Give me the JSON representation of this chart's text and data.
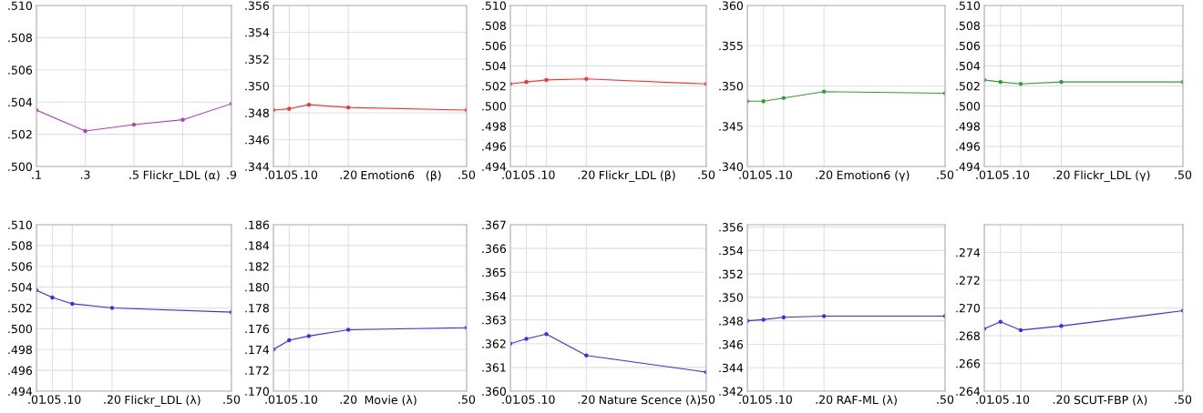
{
  "chart_data": [
    {
      "type": "line",
      "xlabel": "Flickr_LDL (α)",
      "x": [
        0.1,
        0.3,
        0.5,
        0.7,
        0.9
      ],
      "series": [
        {
          "color": "#b040c0",
          "values": [
            0.5035,
            0.5022,
            0.5026,
            0.5029,
            0.5039
          ]
        }
      ],
      "xlim": [
        0.1,
        0.9
      ],
      "xticks": [
        {
          "value": 0.1,
          "label": ".1"
        },
        {
          "value": 0.3,
          "label": ".3"
        },
        {
          "value": 0.5,
          "label": ".5"
        },
        {
          "value": 0.7,
          "label": null
        },
        {
          "value": 0.9,
          "label": ".9"
        }
      ],
      "ylim": [
        0.5,
        0.51
      ],
      "yticks": [
        {
          "value": 0.5,
          "label": ".500"
        },
        {
          "value": 0.502,
          "label": ".502"
        },
        {
          "value": 0.504,
          "label": ".504"
        },
        {
          "value": 0.506,
          "label": ".506"
        },
        {
          "value": 0.508,
          "label": ".508"
        },
        {
          "value": 0.51,
          "label": ".510"
        }
      ],
      "grid": true,
      "marker": "circle"
    },
    {
      "type": "line",
      "xlabel": "Emotion6   (β)",
      "x": [
        0.01,
        0.05,
        0.1,
        0.2,
        0.5
      ],
      "series": [
        {
          "color": "#ff3030",
          "values": [
            0.3482,
            0.3483,
            0.3486,
            0.3484,
            0.3482
          ]
        }
      ],
      "xlim": [
        0.01,
        0.5
      ],
      "xticks": [
        {
          "value": 0.01,
          "label": ".01"
        },
        {
          "value": 0.05,
          "label": ".05"
        },
        {
          "value": 0.1,
          "label": ".10"
        },
        {
          "value": 0.2,
          "label": ".20"
        },
        {
          "value": 0.5,
          "label": ".50"
        }
      ],
      "ylim": [
        0.344,
        0.356
      ],
      "yticks": [
        {
          "value": 0.344,
          "label": ".344"
        },
        {
          "value": 0.346,
          "label": ".346"
        },
        {
          "value": 0.348,
          "label": ".348"
        },
        {
          "value": 0.35,
          "label": ".350"
        },
        {
          "value": 0.352,
          "label": ".352"
        },
        {
          "value": 0.354,
          "label": ".354"
        },
        {
          "value": 0.356,
          "label": ".356"
        }
      ],
      "grid": true,
      "marker": "circle"
    },
    {
      "type": "line",
      "xlabel": "Flickr_LDL (β)",
      "x": [
        0.01,
        0.05,
        0.1,
        0.2,
        0.5
      ],
      "series": [
        {
          "color": "#ff3030",
          "values": [
            0.5022,
            0.5024,
            0.5026,
            0.5027,
            0.5022
          ]
        }
      ],
      "xlim": [
        0.01,
        0.5
      ],
      "xticks": [
        {
          "value": 0.01,
          "label": ".01"
        },
        {
          "value": 0.05,
          "label": ".05"
        },
        {
          "value": 0.1,
          "label": ".10"
        },
        {
          "value": 0.2,
          "label": ".20"
        },
        {
          "value": 0.5,
          "label": ".50"
        }
      ],
      "ylim": [
        0.494,
        0.51
      ],
      "yticks": [
        {
          "value": 0.494,
          "label": ".494"
        },
        {
          "value": 0.496,
          "label": ".496"
        },
        {
          "value": 0.498,
          "label": ".498"
        },
        {
          "value": 0.5,
          "label": ".500"
        },
        {
          "value": 0.502,
          "label": ".502"
        },
        {
          "value": 0.504,
          "label": ".504"
        },
        {
          "value": 0.506,
          "label": ".506"
        },
        {
          "value": 0.508,
          "label": ".508"
        },
        {
          "value": 0.51,
          "label": ".510"
        }
      ],
      "grid": true,
      "marker": "circle"
    },
    {
      "type": "line",
      "xlabel": "Emotion6 (γ)",
      "x": [
        0.01,
        0.05,
        0.1,
        0.2,
        0.5
      ],
      "series": [
        {
          "color": "#30a030",
          "values": [
            0.3481,
            0.3481,
            0.3485,
            0.3493,
            0.3491
          ]
        }
      ],
      "xlim": [
        0.01,
        0.5
      ],
      "xticks": [
        {
          "value": 0.01,
          "label": ".01"
        },
        {
          "value": 0.05,
          "label": ".05"
        },
        {
          "value": 0.1,
          "label": ".10"
        },
        {
          "value": 0.2,
          "label": ".20"
        },
        {
          "value": 0.5,
          "label": ".50"
        }
      ],
      "ylim": [
        0.34,
        0.36
      ],
      "yticks": [
        {
          "value": 0.34,
          "label": ".340"
        },
        {
          "value": 0.345,
          "label": ".345"
        },
        {
          "value": 0.35,
          "label": ".350"
        },
        {
          "value": 0.355,
          "label": ".355"
        },
        {
          "value": 0.36,
          "label": ".360"
        }
      ],
      "grid": true,
      "marker": "circle"
    },
    {
      "type": "line",
      "xlabel": "Flickr_LDL (γ)",
      "x": [
        0.01,
        0.05,
        0.1,
        0.2,
        0.5
      ],
      "series": [
        {
          "color": "#30a030",
          "values": [
            0.5026,
            0.5024,
            0.5022,
            0.5024,
            0.5024
          ]
        }
      ],
      "xlim": [
        0.01,
        0.5
      ],
      "xticks": [
        {
          "value": 0.01,
          "label": ".01"
        },
        {
          "value": 0.05,
          "label": ".05"
        },
        {
          "value": 0.1,
          "label": ".10"
        },
        {
          "value": 0.2,
          "label": ".20"
        },
        {
          "value": 0.5,
          "label": ".50"
        }
      ],
      "ylim": [
        0.494,
        0.51
      ],
      "yticks": [
        {
          "value": 0.494,
          "label": ".494"
        },
        {
          "value": 0.496,
          "label": ".496"
        },
        {
          "value": 0.498,
          "label": ".498"
        },
        {
          "value": 0.5,
          "label": ".500"
        },
        {
          "value": 0.502,
          "label": ".502"
        },
        {
          "value": 0.504,
          "label": ".504"
        },
        {
          "value": 0.506,
          "label": ".506"
        },
        {
          "value": 0.508,
          "label": ".508"
        },
        {
          "value": 0.51,
          "label": ".510"
        }
      ],
      "grid": true,
      "marker": "circle"
    },
    {
      "type": "line",
      "xlabel": "Flickr_LDL (λ)",
      "x": [
        0.01,
        0.05,
        0.1,
        0.2,
        0.5
      ],
      "series": [
        {
          "color": "#3030ff",
          "values": [
            0.5037,
            0.503,
            0.5024,
            0.502,
            0.5016
          ]
        }
      ],
      "xlim": [
        0.01,
        0.5
      ],
      "xticks": [
        {
          "value": 0.01,
          "label": ".01"
        },
        {
          "value": 0.05,
          "label": ".05"
        },
        {
          "value": 0.1,
          "label": ".10"
        },
        {
          "value": 0.2,
          "label": ".20"
        },
        {
          "value": 0.5,
          "label": ".50"
        }
      ],
      "ylim": [
        0.494,
        0.51
      ],
      "yticks": [
        {
          "value": 0.494,
          "label": ".494"
        },
        {
          "value": 0.496,
          "label": ".496"
        },
        {
          "value": 0.498,
          "label": ".498"
        },
        {
          "value": 0.5,
          "label": ".500"
        },
        {
          "value": 0.502,
          "label": ".502"
        },
        {
          "value": 0.504,
          "label": ".504"
        },
        {
          "value": 0.506,
          "label": ".506"
        },
        {
          "value": 0.508,
          "label": ".508"
        },
        {
          "value": 0.51,
          "label": ".510"
        }
      ],
      "grid": true,
      "marker": "circle"
    },
    {
      "type": "line",
      "xlabel": "Movie (λ)",
      "x": [
        0.01,
        0.05,
        0.1,
        0.2,
        0.5
      ],
      "series": [
        {
          "color": "#3030ff",
          "values": [
            0.174,
            0.1749,
            0.1753,
            0.1759,
            0.1761
          ]
        }
      ],
      "xlim": [
        0.01,
        0.5
      ],
      "xticks": [
        {
          "value": 0.01,
          "label": ".01"
        },
        {
          "value": 0.05,
          "label": ".05"
        },
        {
          "value": 0.1,
          "label": ".10"
        },
        {
          "value": 0.2,
          "label": ".20"
        },
        {
          "value": 0.5,
          "label": ".50"
        }
      ],
      "ylim": [
        0.17,
        0.186
      ],
      "yticks": [
        {
          "value": 0.17,
          "label": ".170"
        },
        {
          "value": 0.172,
          "label": ".172"
        },
        {
          "value": 0.174,
          "label": ".174"
        },
        {
          "value": 0.176,
          "label": ".176"
        },
        {
          "value": 0.178,
          "label": ".178"
        },
        {
          "value": 0.18,
          "label": ".180"
        },
        {
          "value": 0.182,
          "label": ".182"
        },
        {
          "value": 0.184,
          "label": ".184"
        },
        {
          "value": 0.186,
          "label": ".186"
        }
      ],
      "grid": true,
      "marker": "circle"
    },
    {
      "type": "line",
      "xlabel": "Nature Scence (λ)",
      "x": [
        0.01,
        0.05,
        0.1,
        0.2,
        0.5
      ],
      "series": [
        {
          "color": "#3030ff",
          "values": [
            0.362,
            0.3622,
            0.3624,
            0.3615,
            0.3608
          ]
        }
      ],
      "xlim": [
        0.01,
        0.5
      ],
      "xticks": [
        {
          "value": 0.01,
          "label": ".01"
        },
        {
          "value": 0.05,
          "label": ".05"
        },
        {
          "value": 0.1,
          "label": ".10"
        },
        {
          "value": 0.2,
          "label": ".20"
        },
        {
          "value": 0.5,
          "label": ".50"
        }
      ],
      "ylim": [
        0.36,
        0.367
      ],
      "yticks": [
        {
          "value": 0.36,
          "label": ".360"
        },
        {
          "value": 0.361,
          "label": ".361"
        },
        {
          "value": 0.362,
          "label": ".362"
        },
        {
          "value": 0.363,
          "label": ".363"
        },
        {
          "value": 0.364,
          "label": ".364"
        },
        {
          "value": 0.365,
          "label": ".365"
        },
        {
          "value": 0.366,
          "label": ".366"
        },
        {
          "value": 0.367,
          "label": ".367"
        }
      ],
      "grid": true,
      "marker": "circle"
    },
    {
      "type": "line",
      "xlabel": "RAF-ML (λ)",
      "x": [
        0.01,
        0.05,
        0.1,
        0.2,
        0.5
      ],
      "series": [
        {
          "color": "#3030ff",
          "values": [
            0.348,
            0.3481,
            0.3483,
            0.3484,
            0.3484
          ]
        }
      ],
      "xlim": [
        0.01,
        0.5
      ],
      "xticks": [
        {
          "value": 0.01,
          "label": ".01"
        },
        {
          "value": 0.05,
          "label": ".05"
        },
        {
          "value": 0.1,
          "label": ".10"
        },
        {
          "value": 0.2,
          "label": ".20"
        },
        {
          "value": 0.5,
          "label": ".50"
        }
      ],
      "ylim": [
        0.342,
        0.3562
      ],
      "yticks": [
        {
          "value": 0.342,
          "label": ".342"
        },
        {
          "value": 0.344,
          "label": ".344"
        },
        {
          "value": 0.346,
          "label": ".346"
        },
        {
          "value": 0.348,
          "label": ".348"
        },
        {
          "value": 0.35,
          "label": ".350"
        },
        {
          "value": 0.352,
          "label": ".352"
        },
        {
          "value": 0.354,
          "label": ".354"
        },
        {
          "value": 0.356,
          "label": ".356"
        }
      ],
      "grid": true,
      "marker": "circle"
    },
    {
      "type": "line",
      "xlabel": "SCUT-FBP (λ)",
      "x": [
        0.01,
        0.05,
        0.1,
        0.2,
        0.5
      ],
      "series": [
        {
          "color": "#3030ff",
          "values": [
            0.2685,
            0.269,
            0.2684,
            0.2687,
            0.2698
          ]
        }
      ],
      "xlim": [
        0.01,
        0.5
      ],
      "xticks": [
        {
          "value": 0.01,
          "label": ".01"
        },
        {
          "value": 0.05,
          "label": ".05"
        },
        {
          "value": 0.1,
          "label": ".10"
        },
        {
          "value": 0.2,
          "label": ".20"
        },
        {
          "value": 0.5,
          "label": ".50"
        }
      ],
      "ylim": [
        0.264,
        0.276
      ],
      "yticks": [
        {
          "value": 0.264,
          "label": ".264"
        },
        {
          "value": 0.266,
          "label": ".266"
        },
        {
          "value": 0.268,
          "label": ".268"
        },
        {
          "value": 0.27,
          "label": ".270"
        },
        {
          "value": 0.272,
          "label": ".272"
        },
        {
          "value": 0.274,
          "label": ".274"
        }
      ],
      "grid": true,
      "marker": "circle"
    }
  ]
}
